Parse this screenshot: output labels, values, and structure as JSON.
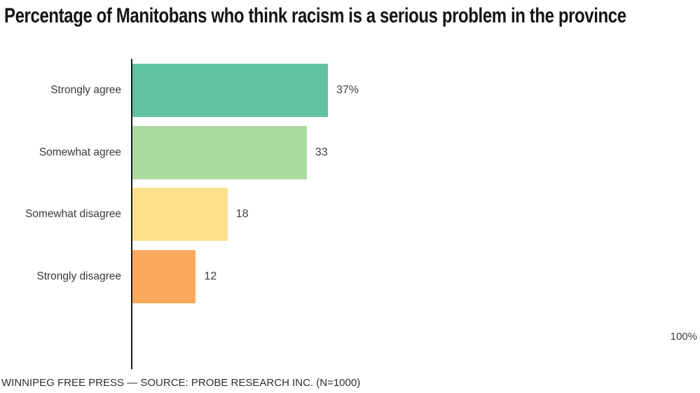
{
  "title": "Percentage of Manitobans who think racism is a serious problem in the province",
  "footer": "WINNIPEG FREE PRESS — SOURCE: PROBE RESEARCH INC. (N=1000)",
  "axis": {
    "max_label": "100%"
  },
  "chart_data": {
    "type": "bar",
    "orientation": "horizontal",
    "title": "Percentage of Manitobans who think racism is a serious problem in the province",
    "categories": [
      "Strongly agree",
      "Somewhat agree",
      "Somewhat disagree",
      "Strongly disagree"
    ],
    "values": [
      37,
      33,
      18,
      12
    ],
    "value_labels": [
      "37%",
      "33",
      "18",
      "12"
    ],
    "bar_colors": [
      "#61c3a0",
      "#aadaa0",
      "#fde08c",
      "#faa95e"
    ],
    "xlim": [
      0,
      100
    ],
    "xlabel": "",
    "ylabel": "",
    "grid": false,
    "legend": false,
    "annotations": [
      "100%"
    ],
    "source": "WINNIPEG FREE PRESS — SOURCE: PROBE RESEARCH INC. (N=1000)"
  },
  "colors": {
    "axis_line": "#1a1a1a",
    "title_text": "#151515",
    "label_text": "#3a3a3a",
    "value_text": "#3d3d3d",
    "background": "#ffffff"
  }
}
